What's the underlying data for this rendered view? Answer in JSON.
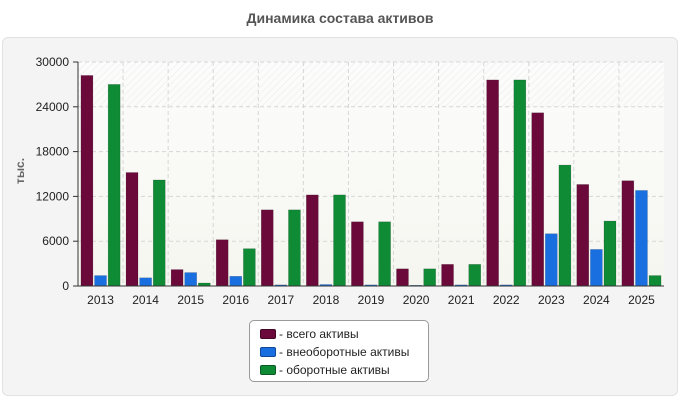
{
  "title": "Динамика состава активов",
  "chart_data": {
    "type": "bar",
    "title": "Динамика состава активов",
    "xlabel": "",
    "ylabel": "тыс.",
    "ylim": [
      0,
      30000
    ],
    "yticks": [
      0,
      6000,
      12000,
      18000,
      24000,
      30000
    ],
    "grid": true,
    "legend_position": "bottom",
    "categories": [
      "2013",
      "2014",
      "2015",
      "2016",
      "2017",
      "2018",
      "2019",
      "2020",
      "2021",
      "2022",
      "2023",
      "2024",
      "2025"
    ],
    "series": [
      {
        "name": "- всего активы",
        "color": "#6b0a3a",
        "values": [
          28200,
          15200,
          2200,
          6200,
          10200,
          12200,
          8600,
          2300,
          2900,
          27600,
          23200,
          13600,
          14100
        ]
      },
      {
        "name": "- внеоборотные активы",
        "color": "#1a6fe0",
        "values": [
          1400,
          1100,
          1800,
          1300,
          150,
          200,
          150,
          100,
          150,
          150,
          7000,
          4900,
          12800
        ]
      },
      {
        "name": "- оборотные активы",
        "color": "#0f8a35",
        "values": [
          27000,
          14200,
          400,
          5000,
          10200,
          12200,
          8600,
          2300,
          2900,
          27600,
          16200,
          8700,
          1400
        ]
      }
    ]
  }
}
